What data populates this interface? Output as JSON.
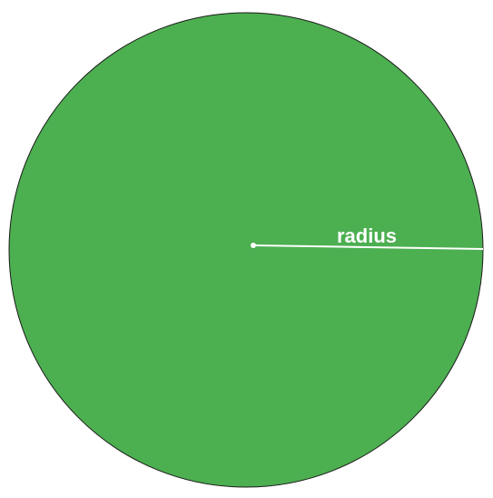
{
  "diagram": {
    "radius_label": "radius",
    "colors": {
      "circle_fill": "#4caf50",
      "circle_stroke": "#1b1b1b",
      "radius_line": "#ffffff",
      "background": "#ffffff"
    }
  }
}
